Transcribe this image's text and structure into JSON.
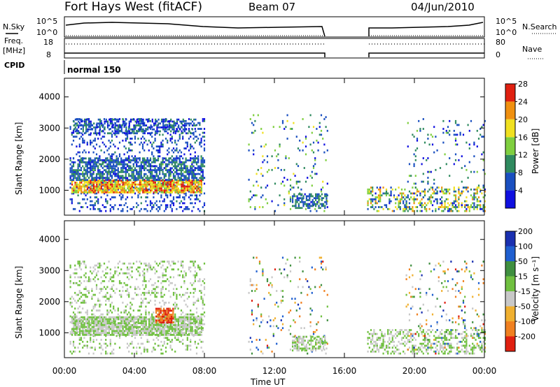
{
  "header": {
    "station": "Fort Hays West (fitACF)",
    "beam": "Beam 07",
    "date": "04/Jun/2010"
  },
  "labels": {
    "nsky": "N.Sky",
    "nsearch": "N.Search",
    "freq": "Freq.",
    "freq_unit": "[MHz]",
    "nave": "Nave",
    "cpid": "CPID",
    "cpid_value": "normal 150",
    "power_label": "Power [dB]",
    "velocity_label": "Velocity [m s⁻¹]",
    "xaxis_title": "Time UT",
    "yaxis_title": "Slant Range [km]"
  },
  "noise_ticks": {
    "left": [
      "10^5",
      "10^0"
    ],
    "right": [
      "10^5",
      "10^0"
    ]
  },
  "freq_ticks": {
    "left": [
      "18",
      "8"
    ],
    "right": [
      "80",
      "0"
    ]
  },
  "x_ticks": [
    "00:00",
    "04:00",
    "08:00",
    "12:00",
    "16:00",
    "20:00",
    "00:00"
  ],
  "y_ticks": [
    "1000",
    "2000",
    "3000",
    "4000"
  ],
  "power_scale": {
    "labels": [
      "4",
      "8",
      "12",
      "16",
      "20",
      "24",
      "28"
    ],
    "colors": [
      "#1010e0",
      "#1a4fc0",
      "#2f8a5f",
      "#7fcf3f",
      "#f0e020",
      "#f09010",
      "#e02010"
    ]
  },
  "velocity_scale": {
    "labels": [
      "200",
      "100",
      "50",
      "15",
      "-15",
      "-50",
      "-100",
      "-200"
    ],
    "colors": [
      "#1a30b0",
      "#1f5fd0",
      "#3f8f3f",
      "#70c040",
      "#c8c8c8",
      "#f0b030",
      "#f08020",
      "#e02010"
    ]
  },
  "chart_data": {
    "type": "heatmap",
    "xlabel": "Time UT",
    "ylabel": "Slant Range [km]",
    "xlim": [
      "00:00",
      "24:00"
    ],
    "ylim": [
      200,
      4600
    ],
    "data_gaps_ut": [
      [
        "15:00",
        "17:15"
      ]
    ],
    "panels": [
      {
        "quantity": "Power [dB]",
        "scale": [
          0,
          32
        ],
        "regions": [
          {
            "t0": 0.3,
            "t1": 8.0,
            "r0": 300,
            "r1": 3300,
            "kind": "scatter",
            "density": 0.22,
            "level": [
              2,
              10
            ]
          },
          {
            "t0": 0.4,
            "t1": 7.8,
            "r0": 900,
            "r1": 1300,
            "kind": "band",
            "density": 0.85,
            "level": [
              16,
              30
            ]
          },
          {
            "t0": 0.3,
            "t1": 8.0,
            "r0": 1300,
            "r1": 2000,
            "kind": "band",
            "density": 0.6,
            "level": [
              4,
              14
            ]
          },
          {
            "t0": 0.5,
            "t1": 7.5,
            "r0": 2800,
            "r1": 3300,
            "kind": "band",
            "density": 0.5,
            "level": [
              2,
              12
            ]
          },
          {
            "t0": 10.5,
            "t1": 15.0,
            "r0": 300,
            "r1": 3400,
            "kind": "scatter",
            "density": 0.06,
            "level": [
              2,
              20
            ]
          },
          {
            "t0": 13.0,
            "t1": 15.0,
            "r0": 400,
            "r1": 900,
            "kind": "band",
            "density": 0.55,
            "level": [
              4,
              14
            ]
          },
          {
            "t0": 17.3,
            "t1": 24.0,
            "r0": 300,
            "r1": 1100,
            "kind": "band",
            "density": 0.35,
            "level": [
              4,
              26
            ]
          },
          {
            "t0": 19.5,
            "t1": 24.0,
            "r0": 300,
            "r1": 3300,
            "kind": "scatter",
            "density": 0.07,
            "level": [
              2,
              16
            ]
          }
        ]
      },
      {
        "quantity": "Velocity [m s-1]",
        "scale": [
          -250,
          250
        ],
        "regions": [
          {
            "t0": 0.3,
            "t1": 8.0,
            "r0": 300,
            "r1": 3300,
            "kind": "scatter",
            "density": 0.22,
            "level": [
              -20,
              20
            ]
          },
          {
            "t0": 0.4,
            "t1": 7.8,
            "r0": 900,
            "r1": 1500,
            "kind": "band",
            "density": 0.85,
            "level": [
              -15,
              15
            ]
          },
          {
            "t0": 5.2,
            "t1": 6.2,
            "r0": 1300,
            "r1": 1800,
            "kind": "band",
            "density": 0.8,
            "level": [
              -220,
              -150
            ]
          },
          {
            "t0": 10.5,
            "t1": 15.0,
            "r0": 300,
            "r1": 3400,
            "kind": "scatter",
            "density": 0.06,
            "level": [
              -200,
              200
            ]
          },
          {
            "t0": 13.0,
            "t1": 15.0,
            "r0": 400,
            "r1": 900,
            "kind": "band",
            "density": 0.55,
            "level": [
              -15,
              15
            ]
          },
          {
            "t0": 17.3,
            "t1": 24.0,
            "r0": 300,
            "r1": 1100,
            "kind": "band",
            "density": 0.35,
            "level": [
              -15,
              15
            ]
          },
          {
            "t0": 19.5,
            "t1": 24.0,
            "r0": 300,
            "r1": 3300,
            "kind": "scatter",
            "density": 0.07,
            "level": [
              -200,
              200
            ]
          }
        ]
      }
    ]
  }
}
